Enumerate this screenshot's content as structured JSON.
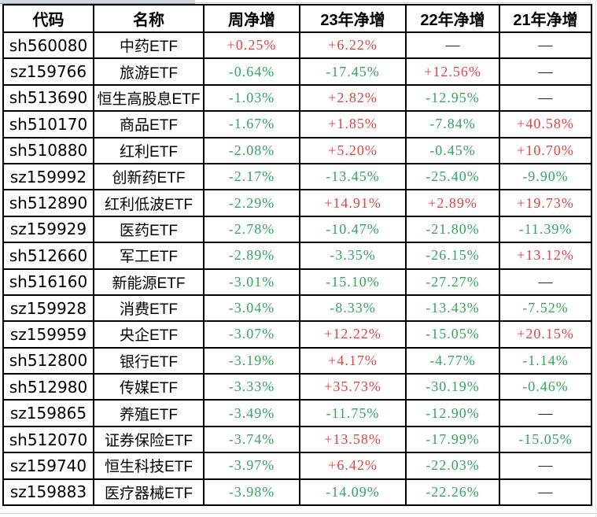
{
  "table": {
    "headers": [
      "代码",
      "名称",
      "周净增",
      "23年净增",
      "22年净增",
      "21年净增"
    ],
    "rows": [
      {
        "code": "sh560080",
        "name": "中药ETF",
        "week": "+0.25%",
        "y23": "+6.22%",
        "y22": "—",
        "y21": "—"
      },
      {
        "code": "sz159766",
        "name": "旅游ETF",
        "week": "-0.64%",
        "y23": "-17.45%",
        "y22": "+12.56%",
        "y21": "—"
      },
      {
        "code": "sh513690",
        "name": "恒生高股息ETF",
        "week": "-1.03%",
        "y23": "+2.82%",
        "y22": "-12.95%",
        "y21": "—"
      },
      {
        "code": "sh510170",
        "name": "商品ETF",
        "week": "-1.67%",
        "y23": "+1.85%",
        "y22": "-7.84%",
        "y21": "+40.58%"
      },
      {
        "code": "sh510880",
        "name": "红利ETF",
        "week": "-2.08%",
        "y23": "+5.20%",
        "y22": "-0.45%",
        "y21": "+10.70%"
      },
      {
        "code": "sz159992",
        "name": "创新药ETF",
        "week": "-2.17%",
        "y23": "-13.45%",
        "y22": "-25.40%",
        "y21": "-9.90%"
      },
      {
        "code": "sh512890",
        "name": "红利低波ETF",
        "week": "-2.29%",
        "y23": "+14.91%",
        "y22": "+2.89%",
        "y21": "+19.73%"
      },
      {
        "code": "sz159929",
        "name": "医药ETF",
        "week": "-2.78%",
        "y23": "-10.47%",
        "y22": "-21.80%",
        "y21": "-11.39%"
      },
      {
        "code": "sh512660",
        "name": "军工ETF",
        "week": "-2.89%",
        "y23": "-3.35%",
        "y22": "-26.15%",
        "y21": "+13.12%"
      },
      {
        "code": "sh516160",
        "name": "新能源ETF",
        "week": "-3.01%",
        "y23": "-15.10%",
        "y22": "-27.27%",
        "y21": "—"
      },
      {
        "code": "sz159928",
        "name": "消费ETF",
        "week": "-3.04%",
        "y23": "-8.33%",
        "y22": "-13.43%",
        "y21": "-7.52%"
      },
      {
        "code": "sz159959",
        "name": "央企ETF",
        "week": "-3.07%",
        "y23": "+12.22%",
        "y22": "-15.05%",
        "y21": "+20.15%"
      },
      {
        "code": "sh512800",
        "name": "银行ETF",
        "week": "-3.19%",
        "y23": "+4.17%",
        "y22": "-4.77%",
        "y21": "-1.14%"
      },
      {
        "code": "sh512980",
        "name": "传媒ETF",
        "week": "-3.33%",
        "y23": "+35.73%",
        "y22": "-30.19%",
        "y21": "-0.46%"
      },
      {
        "code": "sz159865",
        "name": "养殖ETF",
        "week": "-3.49%",
        "y23": "-11.75%",
        "y22": "-12.90%",
        "y21": "—"
      },
      {
        "code": "sh512070",
        "name": "证券保险ETF",
        "week": "-3.74%",
        "y23": "+13.58%",
        "y22": "-17.99%",
        "y21": "-15.05%"
      },
      {
        "code": "sz159740",
        "name": "恒生科技ETF",
        "week": "-3.97%",
        "y23": "+6.42%",
        "y22": "-22.03%",
        "y21": "—"
      },
      {
        "code": "sz159883",
        "name": "医疗器械ETF",
        "week": "-3.98%",
        "y23": "-14.09%",
        "y22": "-22.26%",
        "y21": "—"
      }
    ]
  },
  "colors": {
    "positive": "#e8423b",
    "negative": "#2fa85a",
    "neutral": "#000000",
    "border": "#000000",
    "gridline": "#c8cdd4"
  }
}
